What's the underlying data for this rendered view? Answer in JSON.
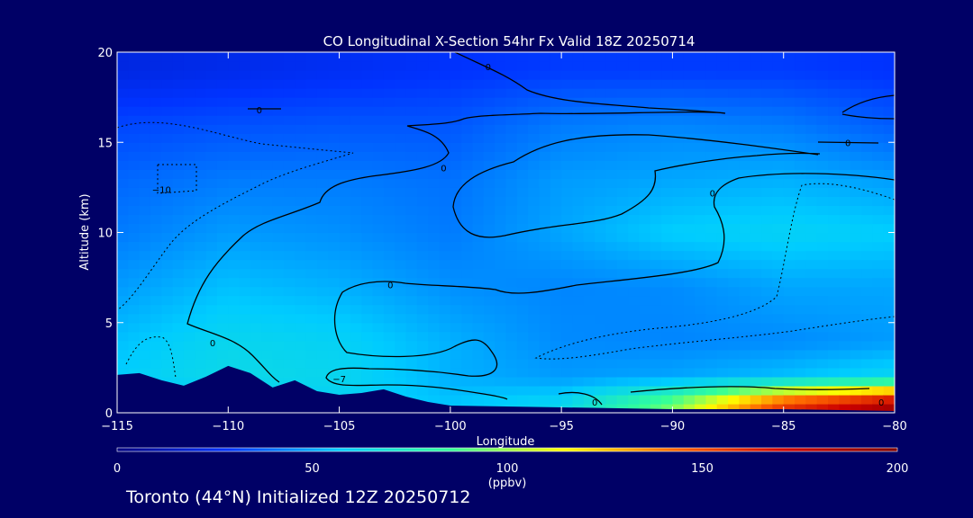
{
  "chart_data": {
    "type": "heatmap",
    "title": "CO Longitudinal X-Section 54hr  Fx Valid 18Z 20250714",
    "xlabel": "Longitude",
    "ylabel": "Altitude (km)",
    "xlim": [
      -115,
      -80
    ],
    "ylim": [
      0,
      20
    ],
    "x_ticks": [
      -115,
      -110,
      -105,
      -100,
      -95,
      -90,
      -85,
      -80
    ],
    "x_tick_labels": [
      "−115",
      "−110",
      "−105",
      "−100",
      "−95",
      "−90",
      "−85",
      "−80"
    ],
    "y_ticks": [
      0,
      5,
      10,
      15,
      20
    ],
    "y_tick_labels": [
      "0",
      "5",
      "10",
      "15",
      "20"
    ],
    "colorbar": {
      "label": "(ppbv)",
      "min": 0,
      "max": 200,
      "ticks": [
        0,
        50,
        100,
        150,
        200
      ],
      "tick_labels": [
        "0",
        "50",
        "100",
        "150",
        "200"
      ],
      "colormap": [
        "#000080",
        "#0033ff",
        "#00ccff",
        "#33ff99",
        "#ffff00",
        "#ff6600",
        "#cc0000",
        "#800000"
      ]
    },
    "field_rows_altitude_km": [
      0.5,
      2,
      4,
      7,
      10,
      13,
      16,
      19
    ],
    "field_cols_longitude": [
      -115,
      -110,
      -105,
      -100,
      -95,
      -90,
      -85,
      -80
    ],
    "field_values_ppbv": [
      [
        52,
        55,
        60,
        56,
        62,
        95,
        155,
        185
      ],
      [
        58,
        64,
        62,
        52,
        48,
        50,
        55,
        62
      ],
      [
        55,
        62,
        60,
        52,
        45,
        44,
        45,
        48
      ],
      [
        48,
        55,
        52,
        46,
        44,
        45,
        50,
        50
      ],
      [
        42,
        48,
        46,
        42,
        50,
        58,
        60,
        58
      ],
      [
        38,
        42,
        42,
        40,
        48,
        50,
        52,
        48
      ],
      [
        32,
        34,
        35,
        35,
        42,
        44,
        42,
        36
      ],
      [
        22,
        24,
        26,
        28,
        30,
        30,
        30,
        28
      ]
    ],
    "contour_labels": [
      {
        "text": "0",
        "lon": -98.3,
        "alt": 19.2
      },
      {
        "text": "0",
        "lon": -108.6,
        "alt": 16.8
      },
      {
        "text": "0",
        "lon": -100.3,
        "alt": 13.6
      },
      {
        "text": "0",
        "lon": -82.1,
        "alt": 15.0
      },
      {
        "text": "0",
        "lon": -88.2,
        "alt": 12.2
      },
      {
        "text": "−10",
        "lon": -113.0,
        "alt": 12.4
      },
      {
        "text": "0",
        "lon": -102.7,
        "alt": 7.1
      },
      {
        "text": "0",
        "lon": -110.7,
        "alt": 3.9
      },
      {
        "text": "−7",
        "lon": -105.0,
        "alt": 1.9
      },
      {
        "text": "0",
        "lon": -93.5,
        "alt": 0.6
      },
      {
        "text": "0",
        "lon": -80.6,
        "alt": 0.6
      }
    ],
    "terrain_alt_km": [
      [
        -115,
        2.1
      ],
      [
        -114,
        2.2
      ],
      [
        -113,
        1.8
      ],
      [
        -112,
        1.5
      ],
      [
        -111,
        2.0
      ],
      [
        -110,
        2.6
      ],
      [
        -109,
        2.2
      ],
      [
        -108,
        1.4
      ],
      [
        -107,
        1.8
      ],
      [
        -106,
        1.2
      ],
      [
        -105,
        1.0
      ],
      [
        -104,
        1.1
      ],
      [
        -103,
        1.3
      ],
      [
        -102,
        0.9
      ],
      [
        -101,
        0.6
      ],
      [
        -100,
        0.4
      ],
      [
        -95,
        0.3
      ],
      [
        -90,
        0.2
      ],
      [
        -85,
        0.2
      ],
      [
        -80,
        0.1
      ]
    ]
  },
  "footer": {
    "text": "Toronto (44°N) Initialized 12Z 20250712"
  }
}
